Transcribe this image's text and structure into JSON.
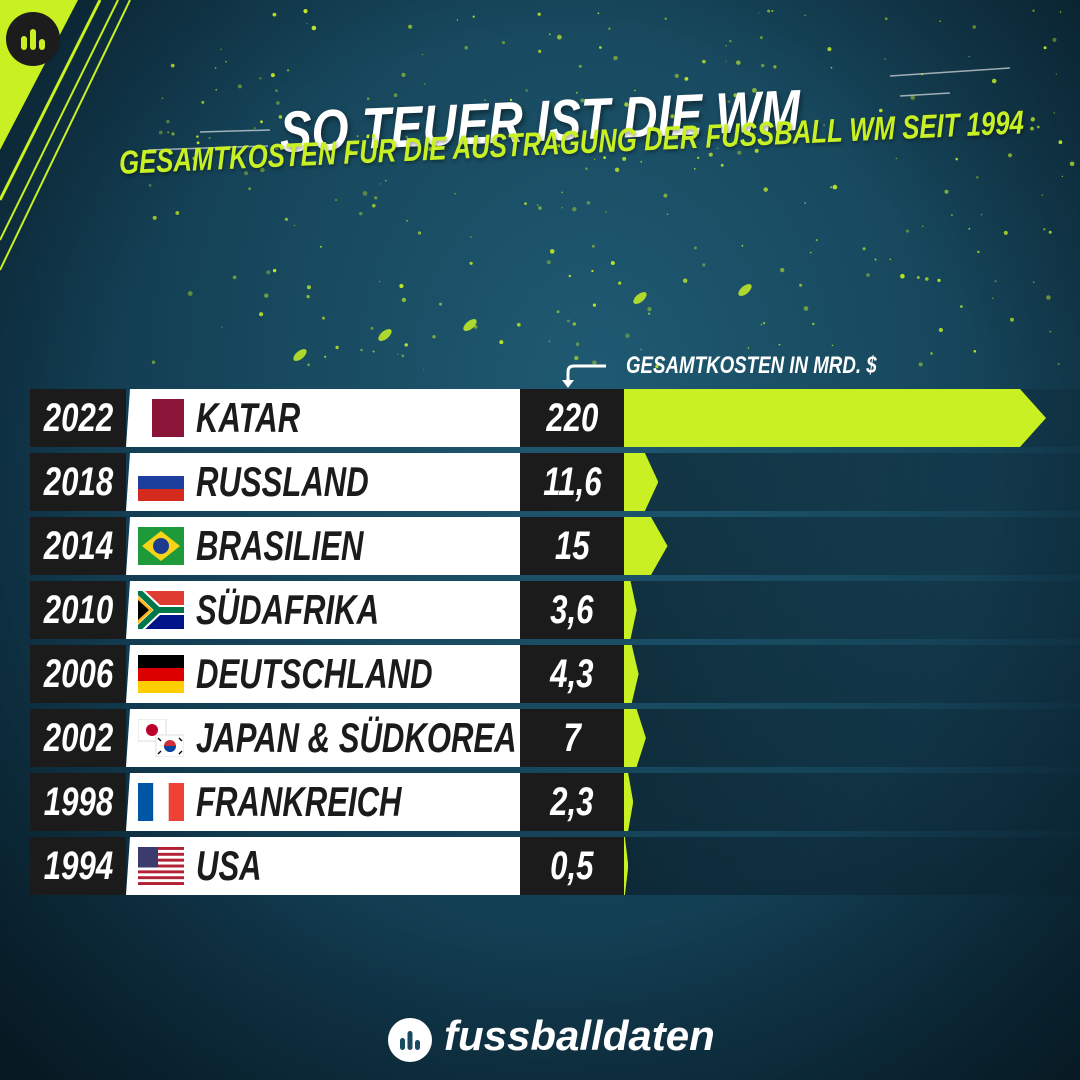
{
  "header": {
    "title": "SO TEUER IST DIE WM",
    "subtitle": "GESAMTKOSTEN FÜR DIE AUSTRAGUNG DER FUSSBALL WM SEIT 1994"
  },
  "colors": {
    "accent": "#c8f023",
    "dark": "#1b1b1b",
    "background": "#184a60"
  },
  "chart_data": {
    "type": "bar",
    "title": "SO TEUER IST DIE WM",
    "subtitle": "GESAMTKOSTEN FÜR DIE AUSTRAGUNG DER FUSSBALL WM SEIT 1994",
    "value_label": "GESAMTKOSTEN IN MRD. $",
    "orientation": "horizontal",
    "rows": [
      {
        "year": "2022",
        "country": "KATAR",
        "flag": "qatar-flag",
        "value": 220,
        "value_label": "220"
      },
      {
        "year": "2018",
        "country": "RUSSLAND",
        "flag": "russia-flag",
        "value": 11.6,
        "value_label": "11,6"
      },
      {
        "year": "2014",
        "country": "BRASILIEN",
        "flag": "brazil-flag",
        "value": 15,
        "value_label": "15"
      },
      {
        "year": "2010",
        "country": "SÜDAFRIKA",
        "flag": "south-africa-flag",
        "value": 3.6,
        "value_label": "3,6"
      },
      {
        "year": "2006",
        "country": "DEUTSCHLAND",
        "flag": "germany-flag",
        "value": 4.3,
        "value_label": "4,3"
      },
      {
        "year": "2002",
        "country": "JAPAN & SÜDKOREA",
        "flag": "japan-korea-flag",
        "value": 7,
        "value_label": "7"
      },
      {
        "year": "1998",
        "country": "FRANKREICH",
        "flag": "france-flag",
        "value": 2.3,
        "value_label": "2,3"
      },
      {
        "year": "1994",
        "country": "USA",
        "flag": "usa-flag",
        "value": 0.5,
        "value_label": "0,5"
      }
    ]
  },
  "footer": {
    "brand": "fussballdaten"
  }
}
